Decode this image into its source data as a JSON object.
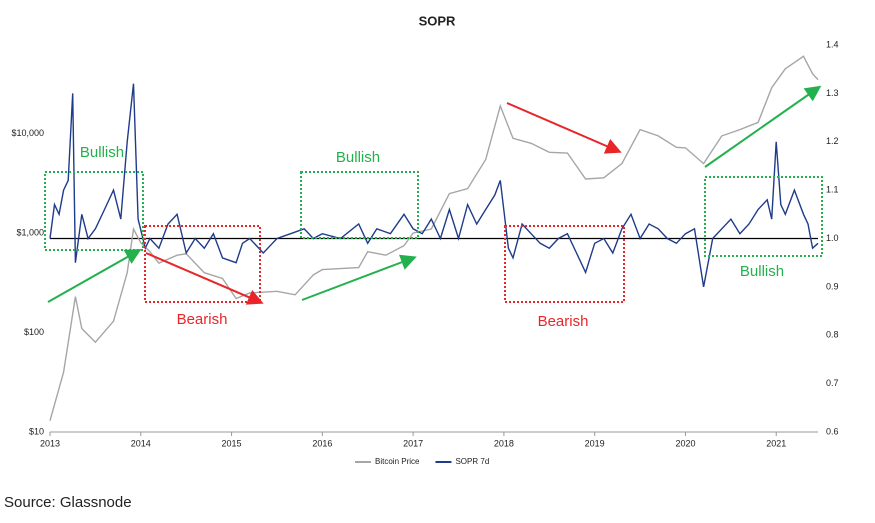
{
  "chart_data": {
    "type": "line",
    "title": "SOPR",
    "xlim": [
      2013,
      2021.46
    ],
    "xticks": [
      2013,
      2014,
      2015,
      2016,
      2017,
      2018,
      2019,
      2020,
      2021
    ],
    "ylim": [
      10,
      78000
    ],
    "yscale": "log",
    "yticks": [
      {
        "value": 10,
        "label": "$10"
      },
      {
        "value": 100,
        "label": "$100"
      },
      {
        "value": 1000,
        "label": "$1,000"
      },
      {
        "value": 10000,
        "label": "$10,000"
      }
    ],
    "y2lim": [
      0.6,
      1.4
    ],
    "y2ticks": [
      0.6,
      0.7,
      0.8,
      0.9,
      {
        "value": 1,
        "label": "1.0"
      },
      1.1,
      1.2,
      1.3,
      1.4
    ],
    "reference_line": {
      "axis": "y2",
      "value": 1
    },
    "legend": "bottom",
    "series": [
      {
        "name": "Bitcoin Price",
        "color": "#a6a6a6",
        "axis": "y",
        "x": [
          2013.0,
          2013.15,
          2013.28,
          2013.35,
          2013.5,
          2013.7,
          2013.85,
          2013.92,
          2014.0,
          2014.1,
          2014.2,
          2014.4,
          2014.5,
          2014.7,
          2014.9,
          2015.05,
          2015.2,
          2015.5,
          2015.7,
          2015.9,
          2016.0,
          2016.4,
          2016.5,
          2016.7,
          2016.9,
          2017.0,
          2017.2,
          2017.4,
          2017.6,
          2017.8,
          2017.96,
          2018.1,
          2018.3,
          2018.5,
          2018.7,
          2018.9,
          2019.1,
          2019.3,
          2019.5,
          2019.7,
          2019.9,
          2020.0,
          2020.2,
          2020.4,
          2020.6,
          2020.8,
          2020.95,
          2021.1,
          2021.3,
          2021.4,
          2021.46
        ],
        "values": [
          13,
          40,
          230,
          110,
          80,
          130,
          400,
          1100,
          800,
          650,
          500,
          600,
          620,
          400,
          350,
          220,
          250,
          260,
          240,
          380,
          430,
          450,
          650,
          600,
          750,
          1000,
          1100,
          2500,
          2800,
          5500,
          19000,
          9000,
          8000,
          6500,
          6400,
          3500,
          3600,
          5000,
          11000,
          9500,
          7300,
          7200,
          5000,
          9500,
          11000,
          13000,
          29000,
          45000,
          60000,
          40000,
          35000
        ]
      },
      {
        "name": "SOPR 7d",
        "color": "#1f3b8a",
        "axis": "y2",
        "x": [
          2013.0,
          2013.05,
          2013.1,
          2013.15,
          2013.2,
          2013.25,
          2013.28,
          2013.35,
          2013.42,
          2013.5,
          2013.6,
          2013.7,
          2013.78,
          2013.85,
          2013.92,
          2013.97,
          2014.05,
          2014.1,
          2014.2,
          2014.3,
          2014.4,
          2014.5,
          2014.6,
          2014.7,
          2014.8,
          2014.9,
          2015.05,
          2015.12,
          2015.2,
          2015.35,
          2015.45,
          2015.5,
          2015.65,
          2015.8,
          2015.9,
          2016.0,
          2016.2,
          2016.4,
          2016.5,
          2016.6,
          2016.75,
          2016.9,
          2017.0,
          2017.1,
          2017.2,
          2017.3,
          2017.4,
          2017.5,
          2017.6,
          2017.7,
          2017.8,
          2017.9,
          2017.96,
          2018.05,
          2018.1,
          2018.2,
          2018.3,
          2018.4,
          2018.5,
          2018.6,
          2018.7,
          2018.8,
          2018.9,
          2019.0,
          2019.1,
          2019.2,
          2019.3,
          2019.4,
          2019.5,
          2019.6,
          2019.7,
          2019.8,
          2019.9,
          2020.0,
          2020.1,
          2020.2,
          2020.3,
          2020.4,
          2020.5,
          2020.6,
          2020.7,
          2020.8,
          2020.9,
          2020.95,
          2021.0,
          2021.05,
          2021.1,
          2021.2,
          2021.3,
          2021.35,
          2021.4,
          2021.46
        ],
        "values": [
          1.0,
          1.07,
          1.05,
          1.1,
          1.12,
          1.3,
          0.95,
          1.05,
          1.0,
          1.02,
          1.06,
          1.1,
          1.04,
          1.2,
          1.32,
          1.04,
          0.98,
          1.0,
          0.98,
          1.03,
          1.05,
          0.97,
          1.0,
          0.98,
          1.01,
          0.96,
          0.95,
          0.99,
          1.0,
          0.97,
          0.99,
          1.0,
          1.01,
          1.02,
          1.0,
          1.01,
          1.0,
          1.03,
          0.99,
          1.02,
          1.01,
          1.05,
          1.02,
          1.01,
          1.04,
          1.0,
          1.06,
          1.0,
          1.07,
          1.03,
          1.06,
          1.09,
          1.12,
          0.98,
          0.96,
          1.03,
          1.01,
          0.99,
          0.98,
          1.0,
          1.01,
          0.97,
          0.93,
          0.99,
          1.0,
          0.97,
          1.02,
          1.05,
          1.0,
          1.03,
          1.02,
          1.0,
          0.99,
          1.01,
          1.02,
          0.9,
          1.0,
          1.02,
          1.04,
          1.01,
          1.03,
          1.06,
          1.08,
          1.04,
          1.2,
          1.07,
          1.05,
          1.1,
          1.05,
          1.03,
          0.98,
          0.99
        ]
      }
    ],
    "annotations": [
      "Bullish",
      "Bearish",
      "Bullish",
      "Bearish",
      "Bullish"
    ],
    "source": "Source: Glassnode"
  }
}
